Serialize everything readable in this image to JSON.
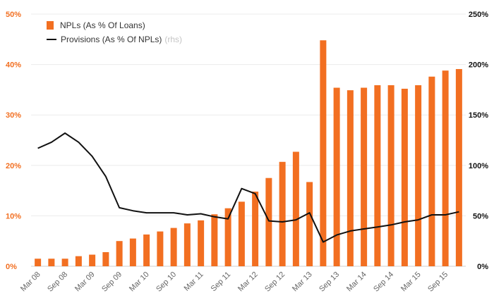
{
  "chart_data": {
    "type": "bar+line",
    "categories": [
      "Mar 08",
      "Jun 08",
      "Sep 08",
      "Dec 08",
      "Mar 09",
      "Jun 09",
      "Sep 09",
      "Dec 09",
      "Mar 10",
      "Jun 10",
      "Sep 10",
      "Dec 10",
      "Mar 11",
      "Jun 11",
      "Sep 11",
      "Dec 11",
      "Mar 12",
      "Jun 12",
      "Sep 12",
      "Dec 12",
      "Mar 13",
      "Jun 13",
      "Sep 13",
      "Dec 13",
      "Mar 14",
      "Jun 14",
      "Sep 14",
      "Dec 14",
      "Mar 15",
      "Jun 15",
      "Sep 15",
      "Dec 15"
    ],
    "x_tick_labels": [
      "Mar 08",
      "Sep 08",
      "Mar 09",
      "Sep 09",
      "Mar 10",
      "Sep 10",
      "Mar 11",
      "Sep 11",
      "Mar 12",
      "Sep 12",
      "Mar 13",
      "Sep 13",
      "Mar 14",
      "Sep 14",
      "Mar 15",
      "Sep 15"
    ],
    "series": [
      {
        "name": "NPLs (As % Of Loans)",
        "type": "bar",
        "axis": "left",
        "color": "#f26f21",
        "values": [
          1.5,
          1.5,
          1.5,
          2.0,
          2.3,
          2.8,
          5.0,
          5.5,
          6.3,
          6.9,
          7.6,
          8.5,
          9.1,
          10.3,
          11.5,
          12.8,
          14.8,
          17.5,
          20.7,
          22.7,
          16.7,
          44.8,
          35.4,
          34.9,
          35.4,
          35.9,
          35.9,
          35.2,
          35.9,
          37.6,
          38.8,
          39.1
        ]
      },
      {
        "name": "Provisions (As % Of NPLs)",
        "type": "line",
        "axis": "right",
        "color": "#111111",
        "values": [
          117,
          123,
          132,
          123,
          109,
          89,
          58,
          55,
          53,
          53,
          53,
          51,
          52,
          49,
          47,
          77,
          72,
          45,
          44,
          46,
          53,
          24,
          31,
          35,
          37,
          39,
          41,
          44,
          46,
          51,
          51,
          54
        ]
      }
    ],
    "y_left": {
      "min": 0,
      "max": 50,
      "ticks": [
        0,
        10,
        20,
        30,
        40,
        50
      ],
      "tick_labels": [
        "0%",
        "10%",
        "20%",
        "30%",
        "40%",
        "50%"
      ],
      "color": "#f26f21"
    },
    "y_right": {
      "min": 0,
      "max": 250,
      "ticks": [
        0,
        50,
        100,
        150,
        200,
        250
      ],
      "tick_labels": [
        "0%",
        "50%",
        "100%",
        "150%",
        "200%",
        "250%"
      ],
      "color": "#111111"
    },
    "legend": {
      "position": "top-left",
      "rhs_note": "(rhs)"
    },
    "grid": true,
    "title": ""
  }
}
